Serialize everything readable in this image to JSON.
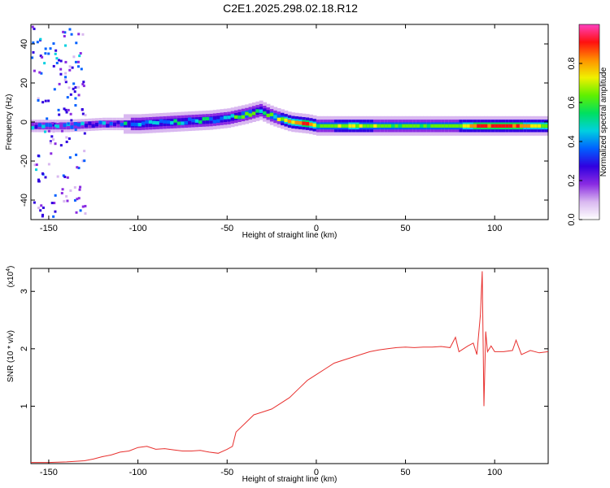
{
  "title": "C2E1.2025.298.02.18.R12",
  "colors": {
    "line": "#e8302e",
    "frame": "#000000"
  },
  "chart_data": [
    {
      "type": "heatmap",
      "name": "spectrogram",
      "xlabel": "Height of straight line (km)",
      "ylabel": "Frequency (Hz)",
      "xlim": [
        -160,
        130
      ],
      "ylim": [
        -50,
        50
      ],
      "xticks": [
        -150,
        -100,
        -50,
        0,
        50,
        100
      ],
      "yticks": [
        -40,
        -20,
        0,
        20,
        40
      ],
      "colorbar": {
        "label": "Normalized spectral amplitude",
        "range": [
          0,
          1
        ],
        "ticks": [
          "0.0",
          "0.2",
          "0.4",
          "0.6",
          "0.8"
        ],
        "colormap": [
          "#ffffff",
          "#d9b8f0",
          "#8a2be2",
          "#3000e0",
          "#0060ff",
          "#00d0e0",
          "#00e060",
          "#60f000",
          "#f0f000",
          "#ff9000",
          "#ff1010",
          "#ff40c0"
        ]
      },
      "ridge": {
        "description": "dominant frequency ridge vs height",
        "x": [
          -155,
          -140,
          -120,
          -100,
          -80,
          -60,
          -50,
          -40,
          -32,
          -25,
          -15,
          -5,
          0,
          20,
          40,
          60,
          80,
          90,
          100,
          110,
          120,
          130
        ],
        "freq": [
          -2,
          -2,
          -1,
          -1,
          0,
          1,
          2,
          4,
          6,
          3,
          0,
          -1,
          -2,
          -2,
          -2,
          -2,
          -2,
          -2,
          -2,
          -2,
          -2,
          -2
        ],
        "amplitude": [
          0.35,
          0.35,
          0.35,
          0.4,
          0.45,
          0.45,
          0.5,
          0.55,
          0.5,
          0.55,
          0.8,
          0.85,
          0.6,
          0.7,
          0.6,
          0.6,
          0.65,
          0.9,
          0.9,
          0.9,
          0.75,
          0.7
        ]
      }
    },
    {
      "type": "line",
      "name": "snr",
      "xlabel": "Height of straight line (km)",
      "ylabel": "SNR (10 * v/v)",
      "yscale_label": "(x10",
      "yscale_exp": "4",
      "xlim": [
        -160,
        130
      ],
      "ylim": [
        0,
        3.4
      ],
      "xticks": [
        -150,
        -100,
        -50,
        0,
        50,
        100
      ],
      "yticks": [
        1,
        2,
        3
      ],
      "series": [
        {
          "name": "SNR",
          "x": [
            -160,
            -150,
            -140,
            -130,
            -125,
            -120,
            -115,
            -110,
            -105,
            -100,
            -95,
            -90,
            -85,
            -80,
            -75,
            -70,
            -65,
            -60,
            -55,
            -50,
            -47,
            -45,
            -40,
            -35,
            -30,
            -25,
            -20,
            -15,
            -10,
            -5,
            0,
            5,
            10,
            15,
            20,
            25,
            30,
            35,
            40,
            45,
            50,
            55,
            60,
            65,
            70,
            75,
            78,
            80,
            85,
            88,
            90,
            92,
            93,
            94,
            95,
            96,
            98,
            100,
            105,
            110,
            112,
            115,
            120,
            125,
            130
          ],
          "y": [
            0.02,
            0.02,
            0.03,
            0.05,
            0.08,
            0.12,
            0.15,
            0.2,
            0.22,
            0.28,
            0.3,
            0.25,
            0.26,
            0.24,
            0.22,
            0.22,
            0.23,
            0.2,
            0.18,
            0.25,
            0.3,
            0.55,
            0.7,
            0.85,
            0.9,
            0.95,
            1.05,
            1.15,
            1.3,
            1.45,
            1.55,
            1.65,
            1.75,
            1.8,
            1.85,
            1.9,
            1.95,
            1.98,
            2.0,
            2.02,
            2.03,
            2.02,
            2.03,
            2.03,
            2.04,
            2.02,
            2.2,
            1.95,
            2.05,
            2.1,
            1.9,
            2.6,
            3.35,
            1.0,
            2.3,
            1.95,
            2.05,
            1.95,
            1.95,
            1.97,
            2.15,
            1.9,
            1.97,
            1.93,
            1.95
          ]
        }
      ]
    }
  ]
}
